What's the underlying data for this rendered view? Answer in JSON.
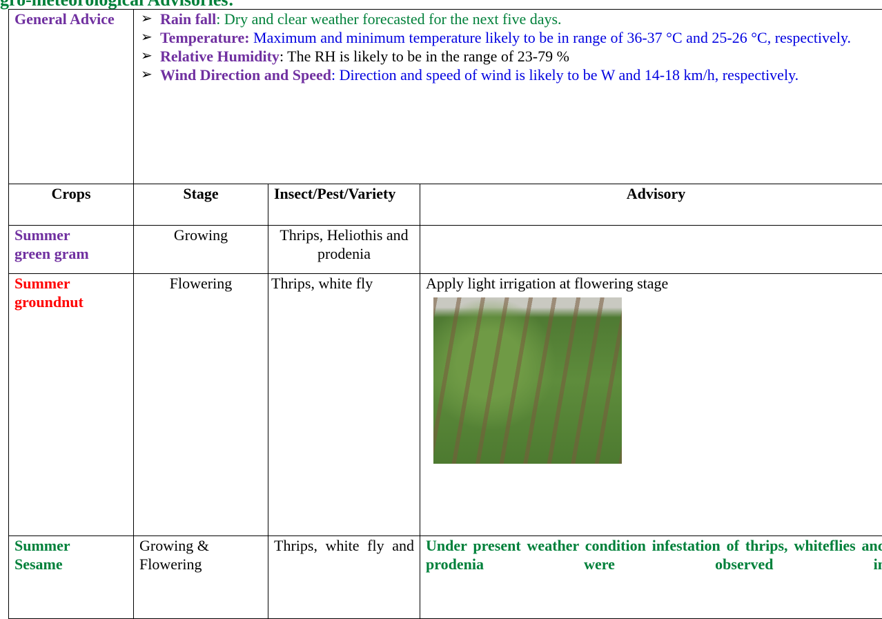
{
  "header": {
    "title": "gro-meteorological Advisories:"
  },
  "general_advice": {
    "label": "General Advice",
    "items": [
      {
        "label": "Rain fall",
        "text": ": Dry and clear weather forecasted for the next five days."
      },
      {
        "label": "Temperature:",
        "text": " Maximum and minimum temperature likely to be in range of 36-37 °C and 25-26 °C, respectively."
      },
      {
        "label": "Relative Humidity",
        "text": ": The RH is likely to be in the range of 23-79 %"
      },
      {
        "label": "Wind Direction and Speed",
        "text": ": Direction and speed of wind is likely to be W and 14-18 km/h, respectively."
      }
    ]
  },
  "table": {
    "header": [
      "Crops",
      "Stage",
      "Insect/Pest/Variety",
      "Advisory"
    ],
    "rows": [
      [
        "Summer green gram",
        "Growing",
        "Thrips, Heliothis and prodenia",
        ""
      ],
      [
        "Summer groundnut",
        "Flowering",
        "Thrips, white fly",
        "Apply light irrigation at flowering stage"
      ],
      [
        "Summer Sesame",
        "Growing & Flowering",
        "Thrips, white fly and",
        "Under present weather condition infestation of thrips, whiteflies and prodenia were observed in"
      ]
    ]
  }
}
